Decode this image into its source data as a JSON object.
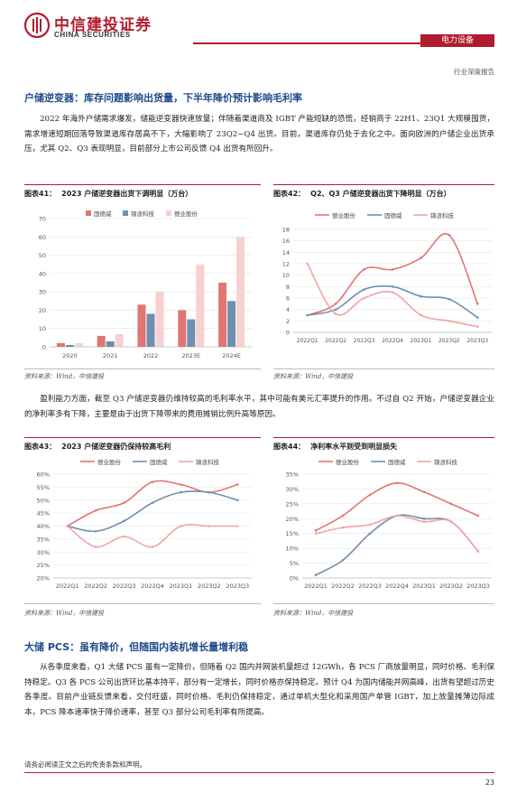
{
  "header": {
    "brand_cn": "中信建投证券",
    "brand_en": "CHINA SECURITIES",
    "industry": "电力设备",
    "report_type": "行业深度报告"
  },
  "section1": {
    "title": "户储逆变器：库存问题影响出货量，下半年降价预计影响毛利率",
    "para1": "2022 年海外户储需求爆发，储能逆变器快速放量；伴随着渠道商及 IGBT 产能短缺的恐慌，经销商于 22H1、23Q1 大规模囤货，需求增速短期回落导致渠道库存居高不下，大幅影响了 23Q2~Q4 出货。目前，渠道库存仍处于去化之中。面向欧洲的户储企业出货承压，尤其 Q2、Q3 表现明显，目前部分上市公司反馈 Q4 出货有所回升。",
    "para2": "盈利能力方面，截至 Q3 户储逆变器仍维持较高的毛利率水平，其中可能有美元汇率提升的作用。不过自 Q2 开始，户储逆变器企业的净利率多有下降，主要是由于出货下降带来的费用摊销比例升高等原因。"
  },
  "section2": {
    "title": "大储 PCS：虽有降价，但随国内装机增长量增利稳",
    "para1": "从各季度来看，Q1 大储 PCS 虽有一定降价，但随着 Q2 国内并网装机量超过 12GWh，各 PCS 厂商放量明显，同时价格、毛利保持稳定。Q3 各 PCS 公司出货环比基本持平，部分有一定增长，同时价格亦保持稳定。预计 Q4 为国内储能并网高峰，出货有望超过历史各季度。目前产业链反馈来看，交付旺盛，同时价格、毛利仍保持稳定，通过单机大型化和采用国产单管 IGBT，加上放量摊薄边际成本，PCS 降本速率快于降价速率，甚至 Q3 部分公司毛利率有所提高。"
  },
  "figures": {
    "fig41": {
      "label": "图表41：",
      "title": "2023 户储逆变器出货下调明显（万台）",
      "source": "资料来源：Wind，中信建投"
    },
    "fig42": {
      "label": "图表42：",
      "title": "Q2、Q3 户储逆变器出货下降明显（万台）",
      "source": "资料来源：Wind，中信建投"
    },
    "fig43": {
      "label": "图表43：",
      "title": "2023 户储逆变器仍保持较高毛利",
      "source": "资料来源：Wind，中信建投"
    },
    "fig44": {
      "label": "图表44：",
      "title": "净利率水平则受到明显损失",
      "source": "资料来源：Wind，中信建投"
    }
  },
  "colors": {
    "brand_red": "#b01c2e",
    "title_blue": "#1f4a8c",
    "gdw": "#e27471",
    "jlkj": "#6f8fb0",
    "dy": "#f2b8b8"
  },
  "chart_data": [
    {
      "type": "bar",
      "title": "2023 户储逆变器出货下调明显（万台）",
      "categories": [
        "2020",
        "2021",
        "2022",
        "2023E",
        "2024E"
      ],
      "ylim": [
        0,
        70
      ],
      "yticks": [
        0,
        10,
        20,
        30,
        40,
        50,
        60,
        70
      ],
      "legend": "top-left",
      "series": [
        {
          "name": "固德威",
          "color": "#e27471",
          "values": [
            2,
            6,
            23,
            20,
            35
          ]
        },
        {
          "name": "锦浪科技",
          "color": "#6f8fb0",
          "values": [
            1,
            3,
            18,
            15,
            25
          ]
        },
        {
          "name": "德业股份",
          "color": "#f7d0d0",
          "values": [
            2,
            7,
            30,
            45,
            60
          ]
        }
      ]
    },
    {
      "type": "line",
      "title": "Q2、Q3 户储逆变器出货下降明显（万台）",
      "categories": [
        "2022Q1",
        "2022Q2",
        "2022Q3",
        "2022Q4",
        "2023Q1",
        "2023Q2",
        "2023Q3"
      ],
      "ylim": [
        0,
        18
      ],
      "yticks": [
        0,
        2,
        4,
        6,
        8,
        10,
        12,
        14,
        16,
        18
      ],
      "legend": "top",
      "series": [
        {
          "name": "德业股份",
          "color": "#e27471",
          "values": [
            3,
            5,
            11,
            11,
            13,
            17,
            5
          ]
        },
        {
          "name": "固德威",
          "color": "#6f8fb0",
          "values": [
            3,
            4,
            7.5,
            8,
            6.3,
            5.8,
            2.6
          ]
        },
        {
          "name": "锦浪科技",
          "color": "#f2a3a3",
          "values": [
            12,
            3.2,
            6,
            7,
            3,
            2,
            1
          ]
        }
      ]
    },
    {
      "type": "line",
      "title": "2023 户储逆变器仍保持较高毛利",
      "categories": [
        "2022Q1",
        "2022Q2",
        "2022Q3",
        "2022Q4",
        "2023Q1",
        "2023Q2",
        "2023Q3"
      ],
      "ylim": [
        20,
        60
      ],
      "yticks": [
        "20%",
        "25%",
        "30%",
        "35%",
        "40%",
        "45%",
        "50%",
        "55%",
        "60%"
      ],
      "ytick_values": [
        20,
        25,
        30,
        35,
        40,
        45,
        50,
        55,
        60
      ],
      "legend": "top",
      "series": [
        {
          "name": "德业股份",
          "color": "#e27471",
          "values": [
            40,
            46,
            49,
            57,
            56,
            53,
            56
          ]
        },
        {
          "name": "固德威",
          "color": "#6f8fb0",
          "values": [
            40,
            38,
            42,
            49,
            53,
            53,
            50
          ]
        },
        {
          "name": "锦浪科技",
          "color": "#f2a3a3",
          "values": [
            40,
            32,
            36,
            32,
            40,
            40,
            40
          ]
        }
      ]
    },
    {
      "type": "line",
      "title": "净利率水平则受到明显损失",
      "categories": [
        "2022Q1",
        "2022Q2",
        "2022Q3",
        "2022Q4",
        "2023Q1",
        "2023Q2",
        "2023Q3"
      ],
      "ylim": [
        0,
        35
      ],
      "yticks": [
        "0%",
        "5%",
        "10%",
        "15%",
        "20%",
        "25%",
        "30%",
        "35%"
      ],
      "ytick_values": [
        0,
        5,
        10,
        15,
        20,
        25,
        30,
        35
      ],
      "legend": "top",
      "series": [
        {
          "name": "德业股份",
          "color": "#e27471",
          "values": [
            16,
            21,
            28,
            32,
            29,
            25,
            21
          ]
        },
        {
          "name": "固德威",
          "color": "#6f8fb0",
          "values": [
            1,
            6,
            15,
            21,
            20,
            19,
            9
          ]
        },
        {
          "name": "锦浪科技",
          "color": "#f2a3a3",
          "values": [
            15,
            17,
            18,
            21,
            19,
            19,
            9
          ]
        }
      ]
    }
  ],
  "footer": {
    "disclaimer": "请务必阅读正文之后的免责条款和声明。",
    "page": "23"
  }
}
